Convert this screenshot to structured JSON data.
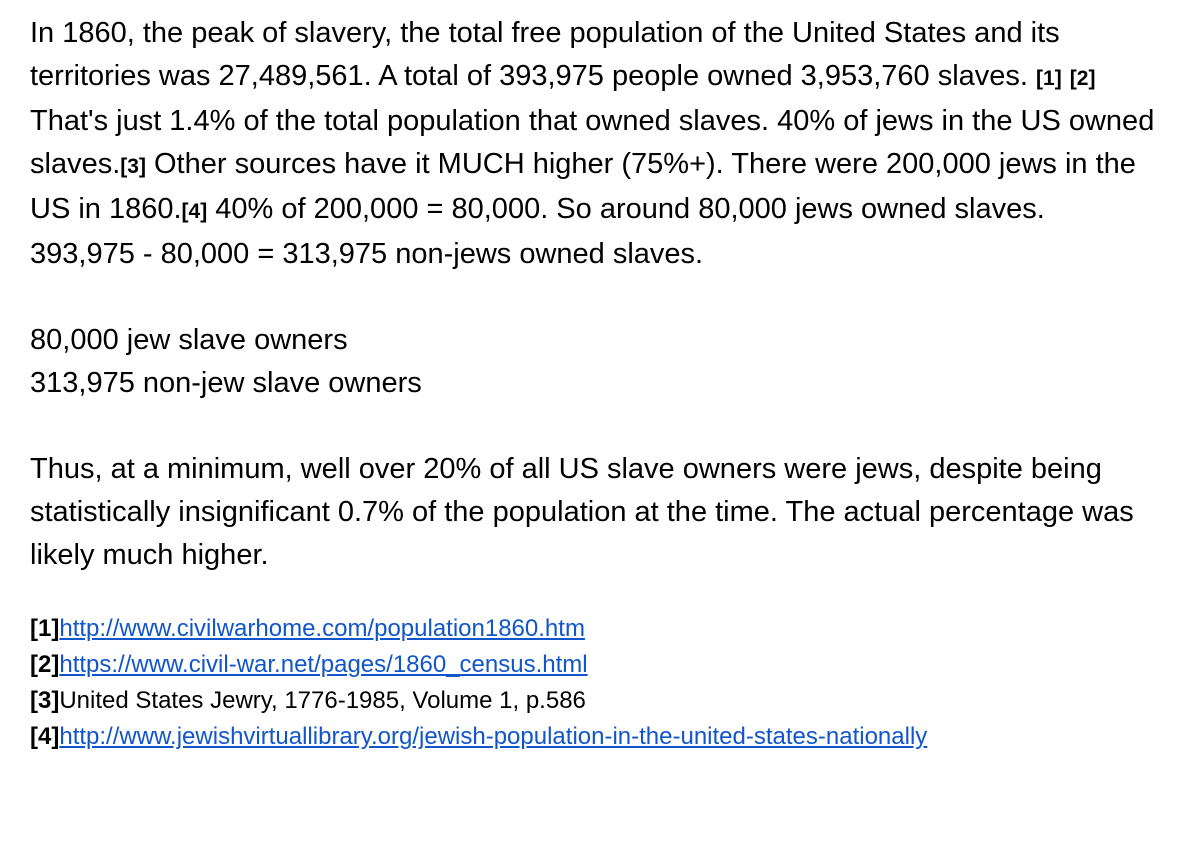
{
  "paragraphs": [
    {
      "segments": [
        {
          "text": "In 1860, the peak of slavery, the total free population of the United States and its territories was 27,489,561. A total of 393,975 people owned 3,953,760 slaves. "
        },
        {
          "cite": "[1]"
        },
        {
          "text": " "
        },
        {
          "cite": "[2]"
        }
      ]
    },
    {
      "segments": [
        {
          "text": "That's just 1.4% of the total population that owned slaves. 40% of jews in the US owned slaves."
        },
        {
          "cite": "[3]"
        },
        {
          "text": " Other sources have it MUCH higher (75%+). There were 200,000 jews in the US in 1860."
        },
        {
          "cite": "[4]"
        },
        {
          "text": " 40% of 200,000 = 80,000. So around 80,000 jews owned slaves. 393,975 - 80,000 = 313,975 non-jews owned slaves."
        }
      ]
    }
  ],
  "summary_lines": [
    "80,000 jew slave owners",
    "313,975 non-jew slave owners"
  ],
  "conclusion": "Thus, at a minimum, well over 20% of all US slave owners were jews, despite being statistically insignificant 0.7% of the population at the time. The actual percentage was likely much higher.",
  "references": [
    {
      "marker": "[1]",
      "text": "http://www.civilwarhome.com/population1860.htm",
      "link": true
    },
    {
      "marker": "[2]",
      "text": "https://www.civil-war.net/pages/1860_census.html",
      "link": true
    },
    {
      "marker": "[3]",
      "text": "United States Jewry, 1776-1985, Volume 1, p.586",
      "link": false
    },
    {
      "marker": "[4]",
      "text": "http://www.jewishvirtuallibrary.org/jewish-population-in-the-united-states-nationally",
      "link": true
    }
  ]
}
